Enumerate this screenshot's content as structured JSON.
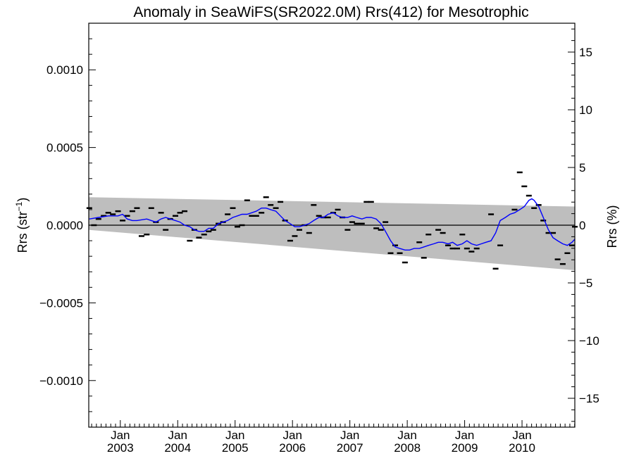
{
  "chart_data": {
    "type": "scatter",
    "title": "Anomaly in SeaWiFS(SR2022.0M) Rrs(412) for Mesotrophic",
    "ylabel_left_main": "Rrs (str",
    "ylabel_left_sup": "−1",
    "ylabel_left_close": ")",
    "ylabel_right": "Rrs (%)",
    "xlim": [
      2002.45,
      2010.92
    ],
    "ylim_left": [
      -0.0013,
      0.0013
    ],
    "ylim_right": [
      -17.5,
      17.5
    ],
    "left_ticks": [
      {
        "value": 0.001,
        "label": "0.0010"
      },
      {
        "value": 0.0005,
        "label": "0.0005"
      },
      {
        "value": 0.0,
        "label": "0.0000"
      },
      {
        "value": -0.0005,
        "label": "−0.0005"
      },
      {
        "value": -0.001,
        "label": "−0.0010"
      }
    ],
    "right_ticks": [
      {
        "value": 15,
        "label": "15"
      },
      {
        "value": 10,
        "label": "10"
      },
      {
        "value": 5,
        "label": "5"
      },
      {
        "value": 0,
        "label": "0"
      },
      {
        "value": -5,
        "label": "−5"
      },
      {
        "value": -10,
        "label": "−10"
      },
      {
        "value": -15,
        "label": "−15"
      }
    ],
    "x_ticks": [
      {
        "value": 2003.0,
        "month": "Jan",
        "year": "2003"
      },
      {
        "value": 2004.0,
        "month": "Jan",
        "year": "2004"
      },
      {
        "value": 2005.0,
        "month": "Jan",
        "year": "2005"
      },
      {
        "value": 2006.0,
        "month": "Jan",
        "year": "2006"
      },
      {
        "value": 2007.0,
        "month": "Jan",
        "year": "2007"
      },
      {
        "value": 2008.0,
        "month": "Jan",
        "year": "2008"
      },
      {
        "value": 2009.0,
        "month": "Jan",
        "year": "2009"
      },
      {
        "value": 2010.0,
        "month": "Jan",
        "year": "2010"
      }
    ],
    "band": {
      "x": [
        2002.45,
        2010.92
      ],
      "upper": [
        0.00018,
        0.00012
      ],
      "lower": [
        -3e-05,
        -0.00029
      ],
      "color": "#bebebe"
    },
    "zero_line": 0.0,
    "series": [
      {
        "style": "dash",
        "color": "#000000",
        "points": [
          [
            2002.46,
            0.00011
          ],
          [
            2002.54,
            0.0
          ],
          [
            2002.62,
            4e-05
          ],
          [
            2002.71,
            6e-05
          ],
          [
            2002.79,
            8e-05
          ],
          [
            2002.87,
            7e-05
          ],
          [
            2002.96,
            9e-05
          ],
          [
            2003.04,
            3e-05
          ],
          [
            2003.12,
            6e-05
          ],
          [
            2003.21,
            9e-05
          ],
          [
            2003.29,
            0.00011
          ],
          [
            2003.37,
            -7e-05
          ],
          [
            2003.46,
            -6e-05
          ],
          [
            2003.54,
            0.00011
          ],
          [
            2003.62,
            2e-05
          ],
          [
            2003.71,
            8e-05
          ],
          [
            2003.79,
            -3e-05
          ],
          [
            2003.87,
            4e-05
          ],
          [
            2003.96,
            6e-05
          ],
          [
            2004.04,
            8e-05
          ],
          [
            2004.12,
            9e-05
          ],
          [
            2004.21,
            -0.0001
          ],
          [
            2004.29,
            -3e-05
          ],
          [
            2004.37,
            -8e-05
          ],
          [
            2004.46,
            -6e-05
          ],
          [
            2004.54,
            -4e-05
          ],
          [
            2004.62,
            -3e-05
          ],
          [
            2004.71,
            1e-05
          ],
          [
            2004.79,
            2e-05
          ],
          [
            2004.87,
            7e-05
          ],
          [
            2004.96,
            0.00011
          ],
          [
            2005.04,
            -1e-05
          ],
          [
            2005.12,
            0.0
          ],
          [
            2005.21,
            0.00016
          ],
          [
            2005.29,
            6e-05
          ],
          [
            2005.37,
            6e-05
          ],
          [
            2005.46,
            8e-05
          ],
          [
            2005.54,
            0.00018
          ],
          [
            2005.62,
            0.00013
          ],
          [
            2005.71,
            0.00011
          ],
          [
            2005.79,
            0.00015
          ],
          [
            2005.87,
            3e-05
          ],
          [
            2005.96,
            -0.0001
          ],
          [
            2006.04,
            -7e-05
          ],
          [
            2006.12,
            -3e-05
          ],
          [
            2006.21,
            0.0
          ],
          [
            2006.29,
            -5e-05
          ],
          [
            2006.37,
            0.00013
          ],
          [
            2006.46,
            6e-05
          ],
          [
            2006.54,
            5e-05
          ],
          [
            2006.62,
            5e-05
          ],
          [
            2006.71,
            8e-05
          ],
          [
            2006.79,
            0.0001
          ],
          [
            2006.87,
            5e-05
          ],
          [
            2006.96,
            -3e-05
          ],
          [
            2007.04,
            2e-05
          ],
          [
            2007.12,
            1e-05
          ],
          [
            2007.21,
            1e-05
          ],
          [
            2007.29,
            0.00015
          ],
          [
            2007.37,
            0.00015
          ],
          [
            2007.46,
            -2e-05
          ],
          [
            2007.54,
            -3e-05
          ],
          [
            2007.62,
            2e-05
          ],
          [
            2007.71,
            -0.00018
          ],
          [
            2007.79,
            -0.00013
          ],
          [
            2007.87,
            -0.00018
          ],
          [
            2007.96,
            -0.00024
          ],
          [
            2008.21,
            -0.00011
          ],
          [
            2008.29,
            -0.00021
          ],
          [
            2008.37,
            -6e-05
          ],
          [
            2008.54,
            -3e-05
          ],
          [
            2008.62,
            -5e-05
          ],
          [
            2008.71,
            -0.00013
          ],
          [
            2008.79,
            -0.00015
          ],
          [
            2008.87,
            -0.00015
          ],
          [
            2008.96,
            -6e-05
          ],
          [
            2009.04,
            -0.00015
          ],
          [
            2009.12,
            -0.00017
          ],
          [
            2009.21,
            -0.00015
          ],
          [
            2009.46,
            7e-05
          ],
          [
            2009.54,
            -0.00028
          ],
          [
            2009.62,
            -0.00013
          ],
          [
            2009.87,
            0.0001
          ],
          [
            2009.96,
            0.00034
          ],
          [
            2010.04,
            0.00025
          ],
          [
            2010.12,
            0.00019
          ],
          [
            2010.21,
            0.00011
          ],
          [
            2010.29,
            0.00013
          ],
          [
            2010.37,
            3e-05
          ],
          [
            2010.46,
            -5e-05
          ],
          [
            2010.54,
            -5e-05
          ],
          [
            2010.62,
            -0.00022
          ],
          [
            2010.71,
            -0.00025
          ],
          [
            2010.79,
            -0.00018
          ],
          [
            2010.87,
            -0.00013
          ],
          [
            2010.92,
            -1e-05
          ]
        ]
      },
      {
        "style": "line",
        "color": "#0000ff",
        "points": [
          [
            2002.46,
            4e-05
          ],
          [
            2002.62,
            5e-05
          ],
          [
            2002.79,
            6e-05
          ],
          [
            2002.96,
            6e-05
          ],
          [
            2003.04,
            7e-05
          ],
          [
            2003.12,
            4e-05
          ],
          [
            2003.21,
            3e-05
          ],
          [
            2003.29,
            3e-05
          ],
          [
            2003.46,
            4e-05
          ],
          [
            2003.54,
            3e-05
          ],
          [
            2003.62,
            2e-05
          ],
          [
            2003.71,
            4e-05
          ],
          [
            2003.79,
            5e-05
          ],
          [
            2003.87,
            4e-05
          ],
          [
            2003.96,
            3e-05
          ],
          [
            2004.04,
            2e-05
          ],
          [
            2004.12,
            0.0
          ],
          [
            2004.21,
            -1e-05
          ],
          [
            2004.29,
            -3e-05
          ],
          [
            2004.37,
            -4e-05
          ],
          [
            2004.46,
            -4e-05
          ],
          [
            2004.54,
            -2e-05
          ],
          [
            2004.62,
            -2e-05
          ],
          [
            2004.71,
            1e-05
          ],
          [
            2004.79,
            2e-05
          ],
          [
            2004.87,
            3e-05
          ],
          [
            2004.96,
            5e-05
          ],
          [
            2005.04,
            6e-05
          ],
          [
            2005.12,
            7e-05
          ],
          [
            2005.21,
            7e-05
          ],
          [
            2005.29,
            8e-05
          ],
          [
            2005.37,
            9e-05
          ],
          [
            2005.46,
            0.00011
          ],
          [
            2005.54,
            0.00011
          ],
          [
            2005.62,
            0.0001
          ],
          [
            2005.71,
            9e-05
          ],
          [
            2005.79,
            6e-05
          ],
          [
            2005.87,
            3e-05
          ],
          [
            2005.96,
            1e-05
          ],
          [
            2006.04,
            -1e-05
          ],
          [
            2006.12,
            -1e-05
          ],
          [
            2006.21,
            0.0
          ],
          [
            2006.29,
            1e-05
          ],
          [
            2006.37,
            3e-05
          ],
          [
            2006.46,
            5e-05
          ],
          [
            2006.54,
            5e-05
          ],
          [
            2006.62,
            7e-05
          ],
          [
            2006.71,
            8e-05
          ],
          [
            2006.79,
            6e-05
          ],
          [
            2006.87,
            5e-05
          ],
          [
            2006.96,
            5e-05
          ],
          [
            2007.04,
            6e-05
          ],
          [
            2007.12,
            5e-05
          ],
          [
            2007.21,
            4e-05
          ],
          [
            2007.29,
            5e-05
          ],
          [
            2007.37,
            5e-05
          ],
          [
            2007.46,
            4e-05
          ],
          [
            2007.54,
            1e-05
          ],
          [
            2007.62,
            -4e-05
          ],
          [
            2007.71,
            -0.0001
          ],
          [
            2007.79,
            -0.00014
          ],
          [
            2007.87,
            -0.00015
          ],
          [
            2007.96,
            -0.00016
          ],
          [
            2008.04,
            -0.00016
          ],
          [
            2008.12,
            -0.00015
          ],
          [
            2008.21,
            -0.00015
          ],
          [
            2008.29,
            -0.00014
          ],
          [
            2008.37,
            -0.00013
          ],
          [
            2008.46,
            -0.00012
          ],
          [
            2008.54,
            -0.00011
          ],
          [
            2008.62,
            -0.00011
          ],
          [
            2008.71,
            -0.00012
          ],
          [
            2008.79,
            -0.00011
          ],
          [
            2008.87,
            -0.00013
          ],
          [
            2008.96,
            -0.00012
          ],
          [
            2009.04,
            -0.0001
          ],
          [
            2009.12,
            -0.00012
          ],
          [
            2009.21,
            -0.00013
          ],
          [
            2009.29,
            -0.00012
          ],
          [
            2009.37,
            -0.00011
          ],
          [
            2009.46,
            -0.0001
          ],
          [
            2009.54,
            -5e-05
          ],
          [
            2009.62,
            3e-05
          ],
          [
            2009.71,
            5e-05
          ],
          [
            2009.79,
            7e-05
          ],
          [
            2009.87,
            8e-05
          ],
          [
            2009.96,
            0.0001
          ],
          [
            2010.04,
            0.00012
          ],
          [
            2010.12,
            0.00016
          ],
          [
            2010.17,
            0.00017
          ],
          [
            2010.21,
            0.00016
          ],
          [
            2010.29,
            0.00012
          ],
          [
            2010.37,
            5e-05
          ],
          [
            2010.46,
            -3e-05
          ],
          [
            2010.54,
            -8e-05
          ],
          [
            2010.62,
            -0.0001
          ],
          [
            2010.71,
            -0.00012
          ],
          [
            2010.79,
            -0.00013
          ],
          [
            2010.87,
            -0.00011
          ],
          [
            2010.92,
            -9e-05
          ]
        ]
      }
    ],
    "grid": false,
    "legend": "none"
  }
}
